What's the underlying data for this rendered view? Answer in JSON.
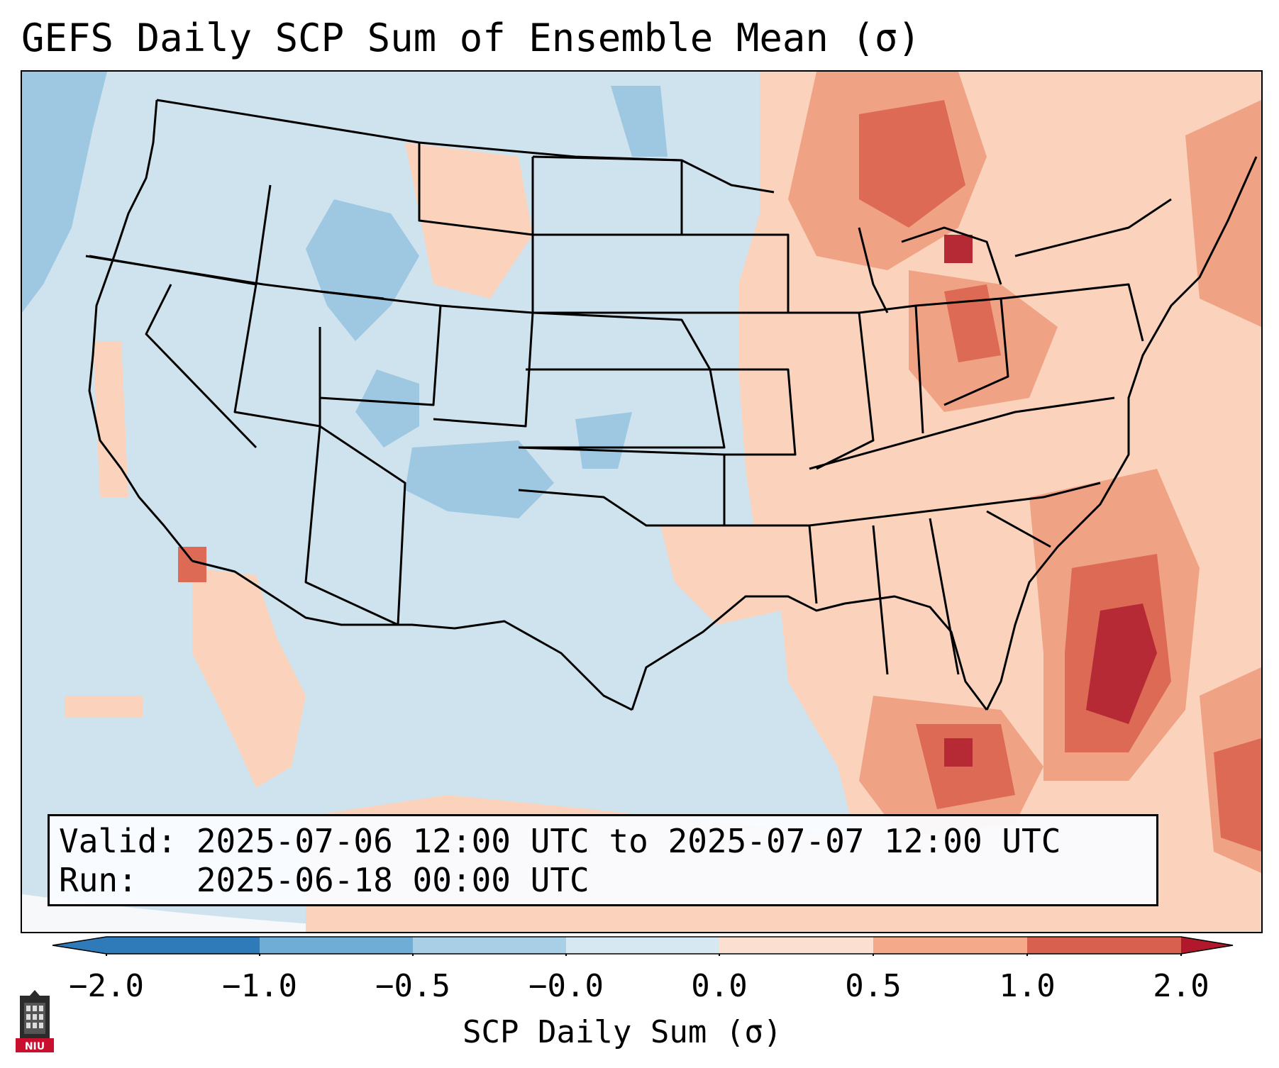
{
  "title_text": "GEFS Daily SCP Sum of Ensemble Mean (σ)",
  "valid_line": "Valid: 2025-07-06 12:00 UTC to 2025-07-07 12:00 UTC",
  "run_line": "Run:   2025-06-18 00:00 UTC",
  "colorbar": {
    "label": "SCP Daily Sum (σ)",
    "ticks": [
      "−2.0",
      "−1.0",
      "−0.5",
      "−0.0",
      "0.0",
      "0.5",
      "1.0",
      "2.0"
    ],
    "colors": [
      "#2f7ab9",
      "#6fadd6",
      "#a8cfe6",
      "#d6e8f2",
      "#fbe0d1",
      "#f3a98a",
      "#d8604f",
      "#b2182b"
    ]
  },
  "logo": {
    "text": "NIU"
  },
  "map": {
    "region": "Contiguous United States",
    "palette": {
      "neutral": "#cfe3ef",
      "light_blue": "#9ec8e1",
      "light_red": "#fbd3bd",
      "mid_red": "#f0a285",
      "red": "#dc6a55",
      "dark_red": "#b52a35"
    }
  }
}
